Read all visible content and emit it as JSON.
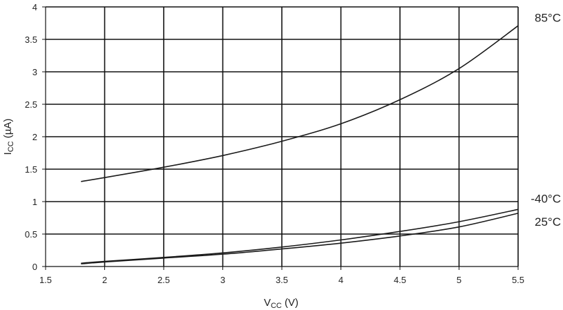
{
  "chart_data": {
    "type": "line",
    "xlabel": {
      "main": "V",
      "sub": "CC",
      "unit": " (V)"
    },
    "ylabel": {
      "main": "I",
      "sub": "CC",
      "unit": " (µA)"
    },
    "xlim": [
      1.5,
      5.5
    ],
    "ylim": [
      0,
      4
    ],
    "x_ticks": [
      1.5,
      2,
      2.5,
      3,
      3.5,
      4,
      4.5,
      5,
      5.5
    ],
    "y_ticks": [
      0,
      0.5,
      1,
      1.5,
      2,
      2.5,
      3,
      3.5,
      4
    ],
    "grid": true,
    "series": [
      {
        "name": "85°C",
        "x": [
          1.8,
          2.0,
          2.5,
          3.0,
          3.5,
          4.0,
          4.5,
          5.0,
          5.5
        ],
        "y": [
          1.31,
          1.37,
          1.53,
          1.71,
          1.93,
          2.2,
          2.57,
          3.05,
          3.71
        ]
      },
      {
        "name": "-40°C",
        "x": [
          1.8,
          2.0,
          2.5,
          3.0,
          3.5,
          4.0,
          4.5,
          5.0,
          5.5
        ],
        "y": [
          0.05,
          0.08,
          0.14,
          0.21,
          0.3,
          0.41,
          0.54,
          0.69,
          0.88
        ]
      },
      {
        "name": "25°C",
        "x": [
          1.8,
          2.0,
          2.5,
          3.0,
          3.5,
          4.0,
          4.5,
          5.0,
          5.5
        ],
        "y": [
          0.04,
          0.07,
          0.13,
          0.19,
          0.27,
          0.36,
          0.47,
          0.61,
          0.82
        ]
      }
    ]
  }
}
